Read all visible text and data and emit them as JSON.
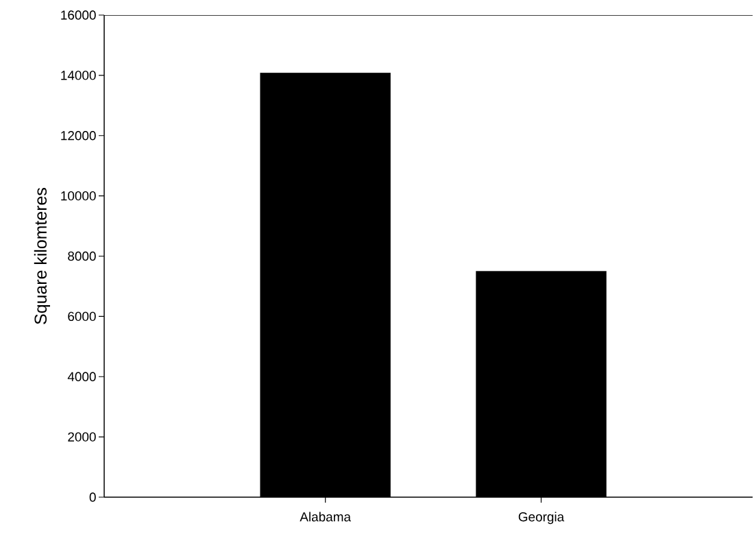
{
  "chart_data": {
    "type": "bar",
    "ylabel": "Square kilomteres",
    "categories": [
      "Alabama",
      "Georgia"
    ],
    "values": [
      14080,
      7500
    ],
    "color": "#000000",
    "ylim": [
      0,
      16000
    ],
    "yticks": [
      0,
      2000,
      4000,
      6000,
      8000,
      10000,
      12000,
      14000,
      16000
    ]
  }
}
